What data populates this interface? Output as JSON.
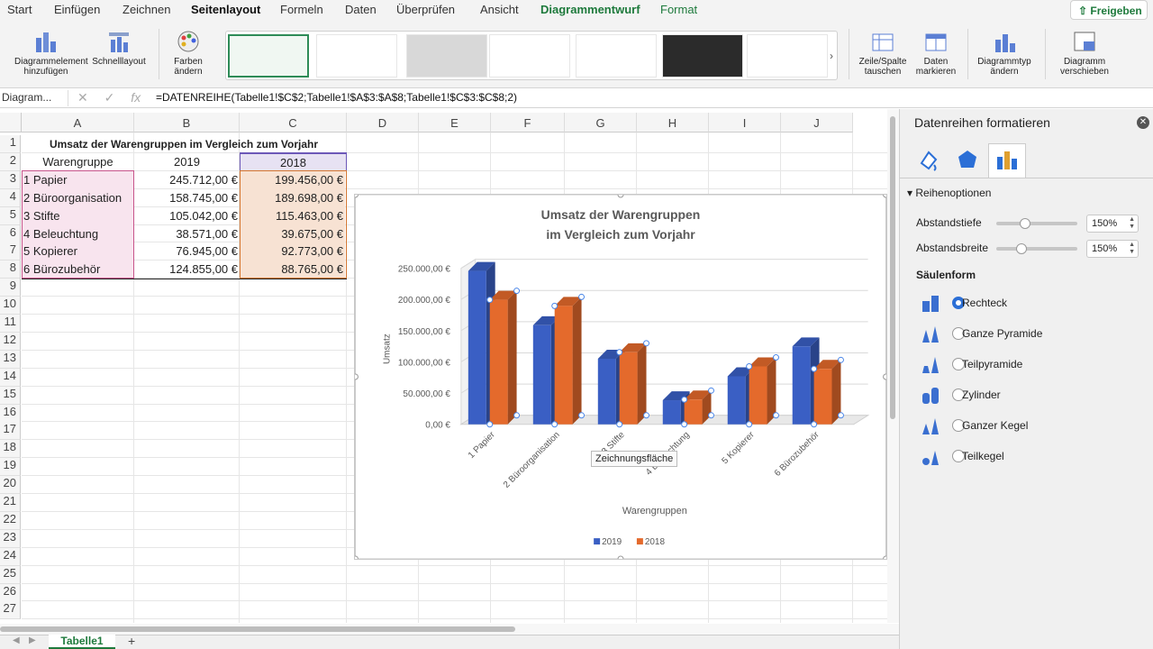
{
  "tabs": [
    "Start",
    "Einfügen",
    "Zeichnen",
    "Seitenlayout",
    "Formeln",
    "Daten",
    "Überprüfen",
    "Ansicht",
    "Diagrammentwurf",
    "Format"
  ],
  "share_label": "Freigeben",
  "ribbon": {
    "add_element": "Diagrammelement hinzufügen",
    "quick_layout": "Schnelllayout",
    "colors": "Farben ändern",
    "switch_row_col": "Zeile/Spalte tauschen",
    "select_data": "Daten markieren",
    "change_type": "Diagrammtyp ändern",
    "move_chart": "Diagramm verschieben"
  },
  "formula_bar": {
    "name_box": "Diagram...",
    "formula": "=DATENREIHE(Tabelle1!$C$2;Tabelle1!$A$3:$A$8;Tabelle1!$C$3:$C$8;2)"
  },
  "grid": {
    "columns": [
      "A",
      "B",
      "C",
      "D",
      "E",
      "F",
      "G",
      "H",
      "I",
      "J"
    ],
    "rows": [
      "1",
      "2",
      "3",
      "4",
      "5",
      "6",
      "7",
      "8",
      "9",
      "10",
      "11",
      "12",
      "13",
      "14",
      "15",
      "16",
      "17",
      "18",
      "19",
      "20",
      "21",
      "22",
      "23",
      "24",
      "25",
      "26",
      "27"
    ],
    "title": "Umsatz der Warengruppen im Vergleich zum Vorjahr",
    "headers": [
      "Warengruppe",
      "2019",
      "2018"
    ],
    "data": [
      [
        "1 Papier",
        "245.712,00 €",
        "199.456,00 €"
      ],
      [
        "2 Büroorganisation",
        "158.745,00 €",
        "189.698,00 €"
      ],
      [
        "3 Stifte",
        "105.042,00 €",
        "115.463,00 €"
      ],
      [
        "4 Beleuchtung",
        "38.571,00 €",
        "39.675,00 €"
      ],
      [
        "5 Kopierer",
        "76.945,00 €",
        "92.773,00 €"
      ],
      [
        "6 Bürozubehör",
        "124.855,00 €",
        "88.765,00 €"
      ]
    ]
  },
  "chart_data": {
    "type": "bar",
    "title": "Umsatz der Warengruppen im Vergleich zum Vorjahr",
    "title_lines": [
      "Umsatz der Warengruppen",
      "im Vergleich zum Vorjahr"
    ],
    "categories": [
      "1 Papier",
      "2 Büroorganisation",
      "3 Stifte",
      "4 Beleuchtung",
      "5 Kopierer",
      "6 Bürozubehör"
    ],
    "series": [
      {
        "name": "2019",
        "values": [
          245712,
          158745,
          105042,
          38571,
          76945,
          124855
        ],
        "color": "#3a5fc4"
      },
      {
        "name": "2018",
        "values": [
          199456,
          189698,
          115463,
          39675,
          92773,
          88765
        ],
        "color": "#e46a2c"
      }
    ],
    "ylim": [
      0,
      250000
    ],
    "yticks": [
      "0,00 €",
      "50.000,00 €",
      "100.000,00 €",
      "150.000,00 €",
      "200.000,00 €",
      "250.000,00 €"
    ],
    "ylabel": "Umsatz",
    "xlabel": "Warengruppen",
    "legend": "bottom",
    "grid": true
  },
  "tooltip": "Zeichnungsfläche",
  "pane": {
    "title": "Datenreihen formatieren",
    "section": "Reihenoptionen",
    "depth_label": "Abstandstiefe",
    "depth_value": "150%",
    "width_label": "Abstandsbreite",
    "width_value": "150%",
    "shape_heading": "Säulenform",
    "shapes": [
      "Rechteck",
      "Ganze Pyramide",
      "Teilpyramide",
      "Zylinder",
      "Ganzer Kegel",
      "Teilkegel"
    ],
    "selected_shape": "Rechteck"
  },
  "sheet_tab": "Tabelle1",
  "colors": {
    "accent": "#1e7a3c",
    "blue": "#3a5fc4",
    "orange": "#e46a2c",
    "radio": "#2b6fd6"
  }
}
